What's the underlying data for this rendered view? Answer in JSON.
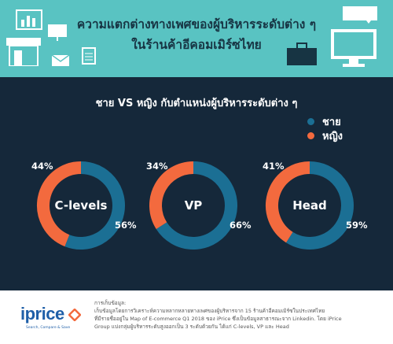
{
  "header": {
    "title_line1": "ความแตกต่างทางเพศของผู้บริหารระดับต่าง ๆ",
    "title_line2": "ในร้านค้าอีคอมเมิร์ซไทย"
  },
  "panel": {
    "title": "ชาย VS หญิง กับตำแหน่งผู้บริหารระดับต่าง ๆ",
    "legend": [
      {
        "label": "ชาย",
        "color": "#1b6f94"
      },
      {
        "label": "หญิง",
        "color": "#f36a3e"
      }
    ]
  },
  "chart_data": {
    "type": "pie",
    "series_names": [
      "ชาย",
      "หญิง"
    ],
    "colors": {
      "male": "#1b6f94",
      "female": "#f36a3e"
    },
    "charts": [
      {
        "label": "C-levels",
        "male": 56,
        "female": 44,
        "male_text": "56%",
        "female_text": "44%"
      },
      {
        "label": "VP",
        "male": 66,
        "female": 34,
        "male_text": "66%",
        "female_text": "34%"
      },
      {
        "label": "Head",
        "male": 59,
        "female": 41,
        "male_text": "59%",
        "female_text": "41%"
      }
    ]
  },
  "footer": {
    "logo_text": "iprice",
    "logo_tagline": "Search, Compare & Save",
    "note_heading": "การเก็บข้อมูล:",
    "note_line1": "เก็บข้อมูลโดยการวิเคราะห์ความหลากหลายทางเพศของผู้บริหารจาก 15 ร้านค้าอีคอมเมิร์ซในประเทศไทย",
    "note_line2": "ที่มีรายชื่ออยู่ใน Map of E-commerce Q1 2018 ของ iPrice ซึ่งเป็นข้อมูลสาธารณะจาก Linkedin. โดย iPrice",
    "note_line3": "Group แบ่งกลุ่มผู้บริหารระดับสูงออกเป็น 3 ระดับด้วยกัน ได้แก่ C-levels, VP และ Head"
  }
}
